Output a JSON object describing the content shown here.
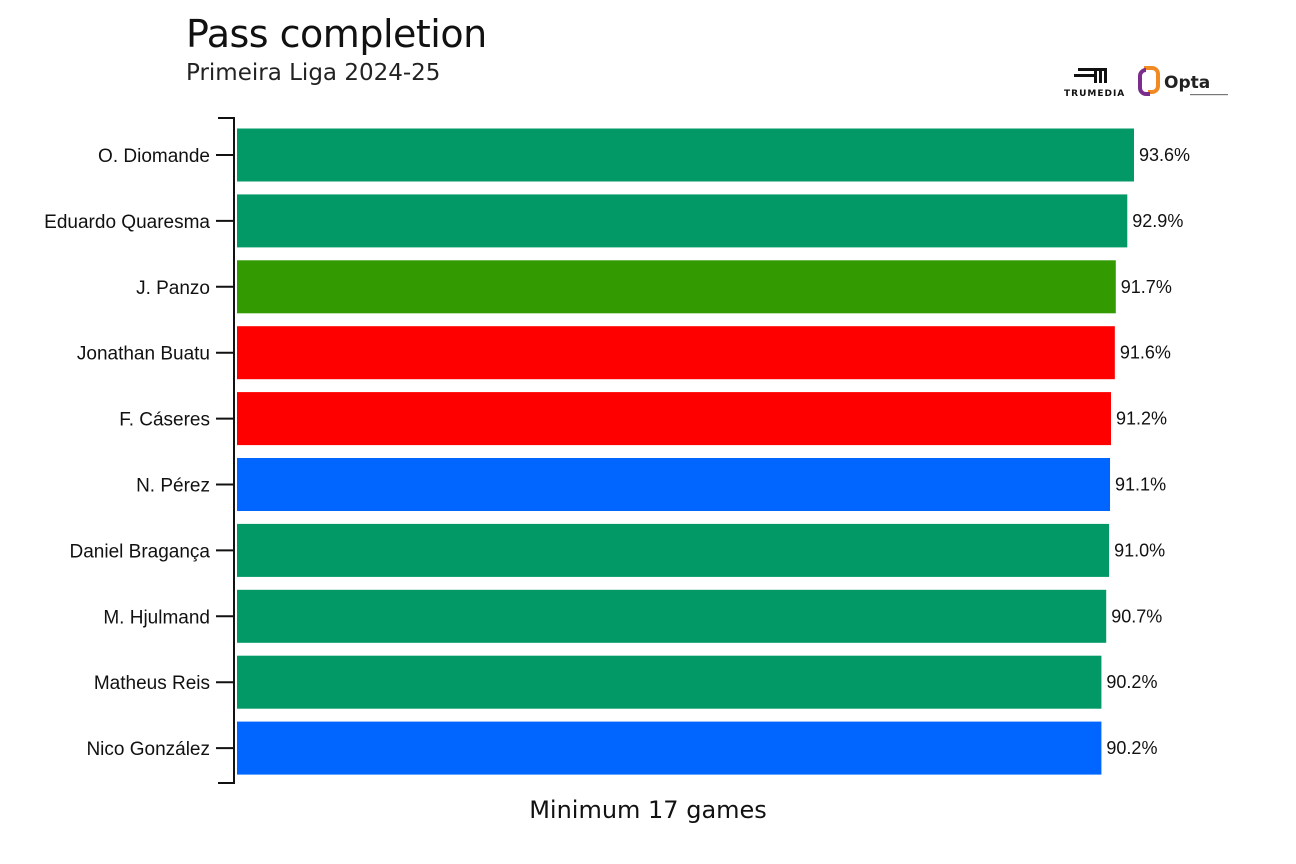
{
  "header": {
    "title": "Pass completion",
    "subtitle": "Primeira Liga 2024-25"
  },
  "logos": {
    "trumedia": "TRUMEDIA",
    "opta": "Opta"
  },
  "footnote": "Minimum 17 games",
  "colors": {
    "green": "#039966",
    "lime": "#339a02",
    "red": "#ff0000",
    "blue": "#0066ff",
    "opta_orange": "#f28a24",
    "opta_purple": "#7a2d8c"
  },
  "chart_data": {
    "type": "bar",
    "orientation": "horizontal",
    "categories": [
      "O. Diomande",
      "Eduardo Quaresma",
      "J. Panzo",
      "Jonathan Buatu",
      "F. Cáseres",
      "N. Pérez",
      "Daniel Bragança",
      "M. Hjulmand",
      "Matheus Reis",
      "Nico González"
    ],
    "values": [
      93.6,
      92.9,
      91.7,
      91.6,
      91.2,
      91.1,
      91.0,
      90.7,
      90.2,
      90.2
    ],
    "value_labels": [
      "93.6%",
      "92.9%",
      "91.7%",
      "91.6%",
      "91.2%",
      "91.1%",
      "91.0%",
      "90.7%",
      "90.2%",
      "90.2%"
    ],
    "bar_colors": [
      "#039966",
      "#039966",
      "#339a02",
      "#ff0000",
      "#ff0000",
      "#0066ff",
      "#039966",
      "#039966",
      "#039966",
      "#0066ff"
    ],
    "xlim": [
      0,
      93.6
    ],
    "grid": false,
    "legend": "none"
  }
}
